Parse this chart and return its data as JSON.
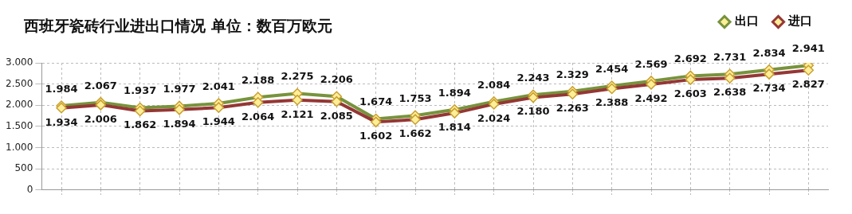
{
  "chart_data": {
    "type": "line",
    "title": "西班牙瓷砖行业进出口情况 单位：数百万欧元",
    "categories": [
      null,
      null,
      null,
      null,
      null,
      null,
      null,
      null,
      null,
      null,
      null,
      null,
      null,
      null,
      null,
      null,
      null,
      null,
      null,
      null
    ],
    "series": [
      {
        "name": "出口",
        "color": "#77933c",
        "values": [
          1984,
          2067,
          1937,
          1977,
          2041,
          2188,
          2275,
          2206,
          1674,
          1753,
          1894,
          2084,
          2243,
          2329,
          2454,
          2569,
          2692,
          2731,
          2834,
          2941
        ],
        "value_labels": [
          "1.984",
          "2.067",
          "1.937",
          "1.977",
          "2.041",
          "2.188",
          "2.275",
          "2.206",
          "1.674",
          "1.753",
          "1.894",
          "2.084",
          "2.243",
          "2.329",
          "2.454",
          "2.569",
          "2.692",
          "2.731",
          "2.834",
          "2.941"
        ]
      },
      {
        "name": "进口",
        "color": "#953735",
        "values": [
          1934,
          2006,
          1862,
          1894,
          1944,
          2064,
          2121,
          2085,
          1602,
          1662,
          1814,
          2024,
          2180,
          2263,
          2388,
          2492,
          2603,
          2638,
          2734,
          2827
        ],
        "value_labels": [
          "1.934",
          "2.006",
          "1.862",
          "1.894",
          "1.944",
          "2.064",
          "2.121",
          "2.085",
          "1.602",
          "1.662",
          "1.814",
          "2.024",
          "2.180",
          "2.263",
          "2.388",
          "2.492",
          "2.603",
          "2.638",
          "2.734",
          "2.827"
        ]
      }
    ],
    "ylim": [
      0,
      3000
    ],
    "yticks": [
      {
        "value": 0,
        "label": "0"
      },
      {
        "value": 500,
        "label": "500"
      },
      {
        "value": 1000,
        "label": "1.000"
      },
      {
        "value": 1500,
        "label": "1.500"
      },
      {
        "value": 2000,
        "label": "2.000"
      },
      {
        "value": 2500,
        "label": "2.500"
      },
      {
        "value": 3000,
        "label": "3.000"
      }
    ],
    "grid": true,
    "legend": "top right",
    "marker": "diamond",
    "line_style": "solid"
  }
}
